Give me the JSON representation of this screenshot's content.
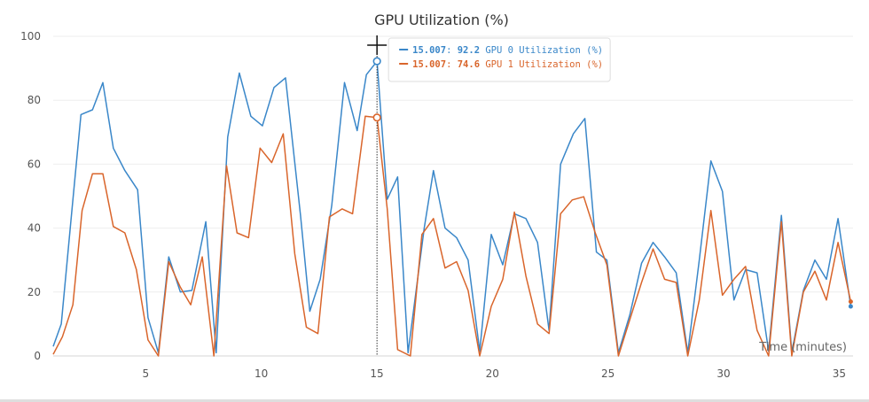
{
  "chart_data": {
    "type": "line",
    "title": "GPU Utilization (%)",
    "xlabel": "Time (minutes)",
    "ylabel": "",
    "xlim": [
      1,
      35.6
    ],
    "ylim": [
      0,
      100
    ],
    "xticks": [
      5,
      10,
      15,
      20,
      25,
      30,
      35
    ],
    "yticks": [
      0,
      20,
      40,
      60,
      80,
      100
    ],
    "grid": true,
    "series": [
      {
        "name": "GPU 0 Utilization (%)",
        "color": "#3a87c9",
        "points": [
          [
            1.0,
            3
          ],
          [
            1.35,
            10
          ],
          [
            1.8,
            45
          ],
          [
            2.2,
            75.5
          ],
          [
            2.7,
            77
          ],
          [
            3.15,
            85.5
          ],
          [
            3.6,
            65
          ],
          [
            4.1,
            58
          ],
          [
            4.65,
            52
          ],
          [
            5.1,
            12
          ],
          [
            5.55,
            1
          ],
          [
            6.0,
            31
          ],
          [
            6.5,
            20
          ],
          [
            7.0,
            20.5
          ],
          [
            7.6,
            42
          ],
          [
            8.05,
            1
          ],
          [
            8.55,
            68.5
          ],
          [
            9.05,
            88.5
          ],
          [
            9.55,
            75
          ],
          [
            10.05,
            72
          ],
          [
            10.55,
            84
          ],
          [
            11.05,
            87
          ],
          [
            11.7,
            44
          ],
          [
            12.1,
            14
          ],
          [
            12.55,
            24
          ],
          [
            13.05,
            47
          ],
          [
            13.6,
            85.5
          ],
          [
            14.15,
            70.5
          ],
          [
            14.55,
            88
          ],
          [
            15.007,
            92.2
          ],
          [
            15.45,
            49
          ],
          [
            15.9,
            56
          ],
          [
            16.35,
            1
          ],
          [
            17.05,
            40
          ],
          [
            17.45,
            58
          ],
          [
            17.95,
            40
          ],
          [
            18.45,
            37
          ],
          [
            18.95,
            30
          ],
          [
            19.45,
            1.5
          ],
          [
            19.95,
            38
          ],
          [
            20.45,
            28.5
          ],
          [
            20.95,
            44.5
          ],
          [
            21.45,
            43
          ],
          [
            21.95,
            35.5
          ],
          [
            22.45,
            8
          ],
          [
            22.95,
            60
          ],
          [
            23.5,
            69.5
          ],
          [
            24.0,
            74.3
          ],
          [
            24.5,
            32.5
          ],
          [
            24.95,
            30
          ],
          [
            25.45,
            1
          ],
          [
            25.95,
            13
          ],
          [
            26.45,
            29
          ],
          [
            26.95,
            35.5
          ],
          [
            27.45,
            31
          ],
          [
            27.95,
            26
          ],
          [
            28.45,
            1
          ],
          [
            28.95,
            30
          ],
          [
            29.45,
            61
          ],
          [
            29.95,
            51.5
          ],
          [
            30.45,
            17.5
          ],
          [
            30.95,
            27
          ],
          [
            31.45,
            26
          ],
          [
            31.95,
            1.5
          ],
          [
            32.5,
            44
          ],
          [
            32.95,
            1
          ],
          [
            33.45,
            20.5
          ],
          [
            33.95,
            30
          ],
          [
            34.45,
            24
          ],
          [
            34.95,
            43
          ],
          [
            35.5,
            15.5
          ]
        ]
      },
      {
        "name": "GPU 1 Utilization (%)",
        "color": "#d9652b",
        "points": [
          [
            1.0,
            0.5
          ],
          [
            1.4,
            6
          ],
          [
            1.85,
            16
          ],
          [
            2.25,
            45.5
          ],
          [
            2.7,
            57
          ],
          [
            3.15,
            57
          ],
          [
            3.6,
            40.5
          ],
          [
            4.1,
            38.5
          ],
          [
            4.6,
            27
          ],
          [
            5.1,
            5
          ],
          [
            5.55,
            0
          ],
          [
            6.0,
            29.5
          ],
          [
            6.5,
            21.5
          ],
          [
            6.95,
            16
          ],
          [
            7.45,
            31
          ],
          [
            7.95,
            0
          ],
          [
            8.5,
            59.5
          ],
          [
            8.95,
            38.5
          ],
          [
            9.45,
            37
          ],
          [
            9.95,
            65
          ],
          [
            10.45,
            60.5
          ],
          [
            10.95,
            69.5
          ],
          [
            11.45,
            32
          ],
          [
            11.95,
            9
          ],
          [
            12.45,
            7
          ],
          [
            12.95,
            43.5
          ],
          [
            13.5,
            46
          ],
          [
            13.95,
            44.5
          ],
          [
            14.5,
            75
          ],
          [
            15.007,
            74.6
          ],
          [
            15.45,
            46
          ],
          [
            15.9,
            2
          ],
          [
            16.45,
            0
          ],
          [
            16.95,
            38
          ],
          [
            17.45,
            43
          ],
          [
            17.95,
            27.5
          ],
          [
            18.45,
            29.5
          ],
          [
            18.95,
            20.5
          ],
          [
            19.45,
            0
          ],
          [
            19.95,
            15.5
          ],
          [
            20.45,
            24
          ],
          [
            20.95,
            45
          ],
          [
            21.45,
            25
          ],
          [
            21.95,
            10
          ],
          [
            22.45,
            7
          ],
          [
            22.95,
            44.5
          ],
          [
            23.45,
            48.8
          ],
          [
            23.95,
            49.8
          ],
          [
            24.45,
            38.5
          ],
          [
            24.95,
            28.5
          ],
          [
            25.45,
            0
          ],
          [
            25.95,
            11.5
          ],
          [
            26.45,
            23
          ],
          [
            26.95,
            33.5
          ],
          [
            27.45,
            24
          ],
          [
            27.95,
            23
          ],
          [
            28.45,
            0
          ],
          [
            28.95,
            17.5
          ],
          [
            29.45,
            45.5
          ],
          [
            29.95,
            19
          ],
          [
            30.45,
            24
          ],
          [
            30.95,
            28
          ],
          [
            31.45,
            8
          ],
          [
            31.95,
            0
          ],
          [
            32.5,
            42
          ],
          [
            32.95,
            0
          ],
          [
            33.45,
            20
          ],
          [
            33.95,
            26.5
          ],
          [
            34.45,
            17.5
          ],
          [
            34.95,
            35.5
          ],
          [
            35.5,
            17
          ]
        ]
      }
    ],
    "hover": {
      "x": 15.007,
      "x_label": "15.007",
      "entries": [
        {
          "x_text": "15.007",
          "value_text": "92.2",
          "label": "GPU 0 Utilization (%)",
          "color": "#3a87c9"
        },
        {
          "x_text": "15.007",
          "value_text": "74.6",
          "label": "GPU 1 Utilization (%)",
          "color": "#d9652b"
        }
      ],
      "separator": ": "
    }
  }
}
